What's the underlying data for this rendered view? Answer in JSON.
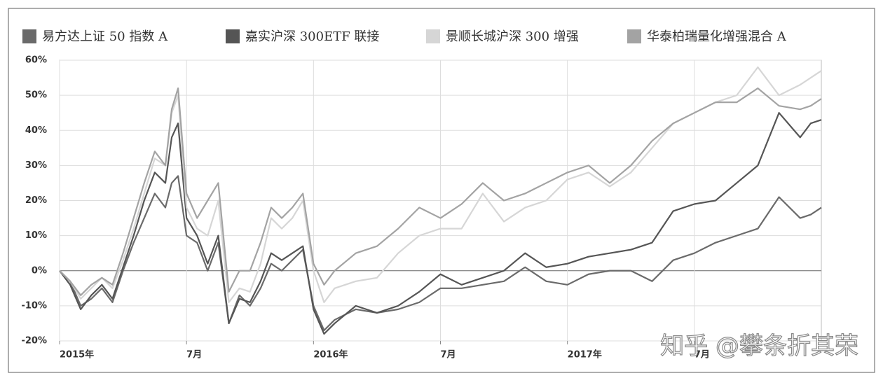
{
  "chart_data": {
    "type": "line",
    "x": [
      0,
      0.5,
      1,
      1.5,
      2,
      2.5,
      3,
      3.5,
      4,
      4.5,
      5,
      5.3,
      5.6,
      6,
      6.5,
      7,
      7.5,
      8,
      8.5,
      9,
      9.5,
      10,
      10.5,
      11,
      11.5,
      12,
      12.5,
      13,
      14,
      15,
      16,
      17,
      18,
      19,
      20,
      21,
      22,
      23,
      24,
      25,
      26,
      27,
      28,
      29,
      30,
      31,
      32,
      33,
      34,
      35,
      35.5,
      36
    ],
    "series": [
      {
        "name": "易方达上证 50 指数 A",
        "color": "#6a6a6a",
        "values": [
          0,
          -3,
          -10,
          -8,
          -5,
          -9,
          0,
          8,
          15,
          22,
          18,
          25,
          27,
          10,
          8,
          0,
          8,
          -15,
          -7,
          -10,
          -5,
          2,
          0,
          3,
          6,
          -10,
          -17,
          -14,
          -11,
          -12,
          -11,
          -9,
          -5,
          -5,
          -4,
          -3,
          1,
          -3,
          -4,
          -1,
          0,
          0,
          -3,
          3,
          5,
          8,
          10,
          12,
          21,
          15,
          16,
          18
        ]
      },
      {
        "name": "嘉实沪深 300ETF 联接",
        "color": "#555555",
        "values": [
          0,
          -4,
          -11,
          -7,
          -4,
          -8,
          1,
          10,
          20,
          28,
          25,
          38,
          42,
          15,
          10,
          2,
          10,
          -15,
          -8,
          -9,
          -3,
          5,
          3,
          5,
          7,
          -11,
          -18,
          -15,
          -10,
          -12,
          -10,
          -6,
          -1,
          -4,
          -2,
          0,
          5,
          1,
          2,
          4,
          5,
          6,
          8,
          17,
          19,
          20,
          25,
          30,
          45,
          38,
          42,
          43
        ]
      },
      {
        "name": "景顺长城沪深 300 增强",
        "color": "#d6d6d6",
        "values": [
          0,
          -3,
          -8,
          -5,
          -2,
          -5,
          3,
          12,
          22,
          32,
          30,
          45,
          50,
          18,
          12,
          10,
          20,
          -9,
          -5,
          -6,
          2,
          15,
          12,
          15,
          20,
          0,
          -9,
          -5,
          -3,
          -2,
          5,
          10,
          12,
          12,
          22,
          14,
          18,
          20,
          26,
          28,
          24,
          28,
          35,
          42,
          45,
          48,
          50,
          58,
          50,
          53,
          55,
          57
        ]
      },
      {
        "name": "华泰柏瑞量化增强混合 A",
        "color": "#a3a3a3",
        "values": [
          0,
          -3,
          -7,
          -4,
          -2,
          -4,
          5,
          15,
          25,
          34,
          30,
          46,
          52,
          22,
          15,
          20,
          25,
          -6,
          0,
          0,
          8,
          18,
          15,
          18,
          22,
          2,
          -4,
          0,
          5,
          7,
          12,
          18,
          15,
          19,
          25,
          20,
          22,
          25,
          28,
          30,
          25,
          30,
          37,
          42,
          45,
          48,
          48,
          52,
          47,
          46,
          47,
          49
        ]
      }
    ],
    "xlim": [
      0,
      36
    ],
    "xticks": [
      {
        "value": 0,
        "label": "2015年"
      },
      {
        "value": 6,
        "label": "7月"
      },
      {
        "value": 12,
        "label": "2016年"
      },
      {
        "value": 18,
        "label": "7月"
      },
      {
        "value": 24,
        "label": "2017年"
      },
      {
        "value": 30,
        "label": "7月"
      }
    ],
    "ylim": [
      -20,
      60
    ],
    "yticks": [
      {
        "value": -20,
        "label": "-20%"
      },
      {
        "value": -10,
        "label": "-10%"
      },
      {
        "value": 0,
        "label": "0%"
      },
      {
        "value": 10,
        "label": "10%"
      },
      {
        "value": 20,
        "label": "20%"
      },
      {
        "value": 30,
        "label": "30%"
      },
      {
        "value": 40,
        "label": "40%"
      },
      {
        "value": 50,
        "label": "50%"
      },
      {
        "value": 60,
        "label": "60%"
      }
    ],
    "grid": true,
    "legend": "top",
    "watermark": "知乎 @攀条折其荣"
  }
}
